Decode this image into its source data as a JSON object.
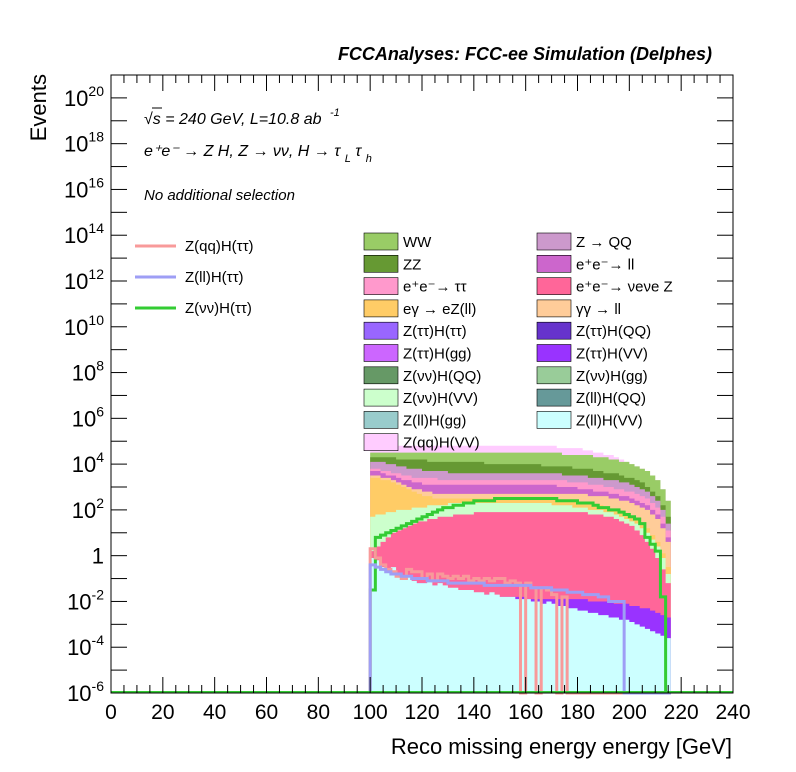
{
  "chart_data": {
    "type": "bar",
    "title": "FCCAnalyses: FCC-ee Simulation (Delphes)",
    "xlabel": "Reco missing energy energy [GeV]",
    "ylabel": "Events",
    "log_y": true,
    "xlim": [
      0,
      240
    ],
    "ylim": [
      1e-06,
      1e+21
    ],
    "xticks": [
      "0",
      "20",
      "40",
      "60",
      "80",
      "100",
      "120",
      "140",
      "160",
      "180",
      "200",
      "220",
      "240"
    ],
    "yticks": [
      {
        "base": "10",
        "exp": "20",
        "value": 1e+20
      },
      {
        "base": "10",
        "exp": "18",
        "value": 1e+18
      },
      {
        "base": "10",
        "exp": "16",
        "value": 1e+16
      },
      {
        "base": "10",
        "exp": "14",
        "value": 100000000000000.0
      },
      {
        "base": "10",
        "exp": "12",
        "value": 1000000000000.0
      },
      {
        "base": "10",
        "exp": "10",
        "value": 10000000000.0
      },
      {
        "base": "10",
        "exp": "8",
        "value": 100000000.0
      },
      {
        "base": "10",
        "exp": "6",
        "value": 1000000.0
      },
      {
        "base": "10",
        "exp": "4",
        "value": 10000.0
      },
      {
        "base": "10",
        "exp": "2",
        "value": 100.0
      },
      {
        "base": "1",
        "exp": "",
        "value": 1
      },
      {
        "base": "10",
        "exp": "-2",
        "value": 0.01
      },
      {
        "base": "10",
        "exp": "-4",
        "value": 0.0001
      },
      {
        "base": "10",
        "exp": "-6",
        "value": 1e-06
      }
    ],
    "annotations": {
      "energy_line": "√s = 240 GeV, L=10.8 ab",
      "energy_sup": "-1",
      "process_line": "e⁺e⁻ → Z H, Z → νν, H → τ",
      "process_sub_l": "L",
      "process_tau": "τ",
      "process_sub_h": "h",
      "selection": "No additional selection"
    },
    "signal_legend": [
      {
        "label": "Z(qq)H(ττ)",
        "color": "#f89a9a"
      },
      {
        "label": "Z(ll)H(ττ)",
        "color": "#9e9ef5"
      },
      {
        "label": "Z(νν)H(ττ)",
        "color": "#33cc33"
      }
    ],
    "background_legend": [
      {
        "label": "WW",
        "color": "#99cc66"
      },
      {
        "label": "Z → QQ",
        "color": "#cc99cc"
      },
      {
        "label": "ZZ",
        "color": "#669933"
      },
      {
        "label": "e⁺e⁻→ ll",
        "color": "#cc66cc"
      },
      {
        "label": "e⁺e⁻→ ττ",
        "color": "#ff99cc"
      },
      {
        "label": "e⁺e⁻→ νeνe Z",
        "color": "#ff6699"
      },
      {
        "label": "eγ → eZ(ll)",
        "color": "#ffcc66"
      },
      {
        "label": "γγ → ll",
        "color": "#ffcc99"
      },
      {
        "label": "Z(ττ)H(ττ)",
        "color": "#9966ff"
      },
      {
        "label": "Z(ττ)H(QQ)",
        "color": "#6633cc"
      },
      {
        "label": "Z(ττ)H(gg)",
        "color": "#cc66ff"
      },
      {
        "label": "Z(ττ)H(VV)",
        "color": "#9933ff"
      },
      {
        "label": "Z(νν)H(QQ)",
        "color": "#669966"
      },
      {
        "label": "Z(νν)H(gg)",
        "color": "#99cc99"
      },
      {
        "label": "Z(νν)H(VV)",
        "color": "#ccffcc"
      },
      {
        "label": "Z(ll)H(QQ)",
        "color": "#669999"
      },
      {
        "label": "Z(ll)H(gg)",
        "color": "#99cccc"
      },
      {
        "label": "Z(ll)H(VV)",
        "color": "#ccffff"
      },
      {
        "label": "Z(qq)H(VV)",
        "color": "#ffccff"
      }
    ],
    "stack_bins": [
      100,
      102,
      104,
      106,
      108,
      110,
      112,
      114,
      116,
      118,
      120,
      122,
      124,
      126,
      128,
      130,
      132,
      134,
      136,
      138,
      140,
      142,
      144,
      146,
      148,
      150,
      152,
      154,
      156,
      158,
      160,
      162,
      164,
      166,
      168,
      170,
      172,
      174,
      176,
      178,
      180,
      182,
      184,
      186,
      188,
      190,
      192,
      194,
      196,
      198,
      200,
      202,
      204,
      206,
      208,
      210,
      212,
      214,
      216
    ],
    "stack_bands": [
      {
        "name": "Z(ll)H(VV)",
        "color": "#ccffff",
        "top_exp": [
          -0.1,
          -0.2,
          -0.5,
          -0.7,
          -0.5,
          -0.8,
          -1,
          -0.9,
          -1.1,
          -1.2,
          -1.2,
          -1.1,
          -1.3,
          -1.2,
          -1.3,
          -1.4,
          -1.4,
          -1.5,
          -1.5,
          -1.5,
          -1.6,
          -1.6,
          -1.7,
          -1.6,
          -1.7,
          -1.8,
          -1.8,
          -1.8,
          -1.9,
          -1.9,
          -1.9,
          -2,
          -2,
          -2.1,
          -2,
          -2.1,
          -2.2,
          -2.2,
          -2.3,
          -2.3,
          -2.4,
          -2.4,
          -2.5,
          -2.5,
          -2.6,
          -2.6,
          -2.7,
          -2.7,
          -2.8,
          -2.8,
          -2.9,
          -3,
          -3.1,
          -3.2,
          -3.3,
          -3.4,
          -3.5,
          -3.6
        ]
      },
      {
        "name": "Z(ττ)H(VV)",
        "color": "#9933ff",
        "top_exp": [
          -0.5,
          -0.6,
          -0.7,
          -0.8,
          -0.9,
          -1.0,
          -1.0,
          -1.1,
          -1.1,
          -1.2,
          -1.2,
          -1.3,
          -1.3,
          -1.4,
          -1.4,
          -1.5,
          -1.5,
          -1.6,
          -1.6,
          -1.6,
          -1.7,
          -1.7,
          -1.7,
          -1.7,
          -1.8,
          -1.8,
          -1.8,
          -1.8,
          -1.8,
          -1.8,
          -1.9,
          -1.9,
          -1.9,
          -1.9,
          -1.9,
          -1.9,
          -1.9,
          -1.9,
          -1.9,
          -1.9,
          -1.9,
          -1.9,
          -2.0,
          -2.0,
          -2.0,
          -2.0,
          -2.0,
          -2.1,
          -2.1,
          -2.1,
          -2.2,
          -2.2,
          -2.3,
          -2.3,
          -2.4,
          -2.5,
          -2.6,
          -2.7
        ]
      },
      {
        "name": "e⁺e⁻→ νeνe Z",
        "color": "#ff6699",
        "top_exp": [
          0.2,
          0.4,
          0.6,
          0.8,
          1.0,
          1.1,
          1.2,
          1.3,
          1.4,
          1.5,
          1.5,
          1.6,
          1.6,
          1.7,
          1.7,
          1.7,
          1.8,
          1.8,
          1.8,
          1.8,
          1.9,
          1.9,
          1.9,
          1.9,
          1.9,
          1.9,
          1.9,
          1.9,
          1.9,
          1.9,
          1.9,
          1.9,
          1.9,
          1.9,
          1.9,
          1.9,
          1.9,
          1.9,
          1.9,
          1.9,
          1.9,
          1.9,
          1.8,
          1.8,
          1.8,
          1.7,
          1.7,
          1.6,
          1.5,
          1.4,
          1.3,
          1.1,
          0.9,
          0.6,
          0.3,
          -0.1,
          -0.6,
          -1.2
        ]
      },
      {
        "name": "Z(νν)H(VV)",
        "color": "#ccffcc",
        "top_exp": [
          1.7,
          1.8,
          1.8,
          1.9,
          1.9,
          2.0,
          2.0,
          2.0,
          2.1,
          2.1,
          2.1,
          2.2,
          2.2,
          2.2,
          2.2,
          2.3,
          2.3,
          2.3,
          2.3,
          2.3,
          2.3,
          2.3,
          2.3,
          2.3,
          2.3,
          2.3,
          2.3,
          2.3,
          2.3,
          2.3,
          2.3,
          2.3,
          2.3,
          2.3,
          2.3,
          2.2,
          2.2,
          2.2,
          2.2,
          2.1,
          2.1,
          2.1,
          2.0,
          2.0,
          2.0,
          1.9,
          1.9,
          1.8,
          1.7,
          1.6,
          1.5,
          1.4,
          1.2,
          1.0,
          0.7,
          0.4,
          -0.1,
          -0.8
        ]
      },
      {
        "name": "eγ → eZ(ll)",
        "color": "#ffcc66",
        "top_exp": [
          3.4,
          3.4,
          3.3,
          3.3,
          3.2,
          3.1,
          3.0,
          2.9,
          2.8,
          2.7,
          2.6,
          2.6,
          2.5,
          2.5,
          2.5,
          2.5,
          2.5,
          2.5,
          2.5,
          2.5,
          2.5,
          2.5,
          2.5,
          2.5,
          2.5,
          2.5,
          2.5,
          2.5,
          2.5,
          2.5,
          2.5,
          2.5,
          2.5,
          2.5,
          2.5,
          2.5,
          2.4,
          2.4,
          2.4,
          2.4,
          2.3,
          2.3,
          2.3,
          2.2,
          2.2,
          2.1,
          2.0,
          2.0,
          1.9,
          1.8,
          1.7,
          1.6,
          1.4,
          1.2,
          0.9,
          0.6,
          0.1,
          -0.5
        ]
      },
      {
        "name": "γγ → ll",
        "color": "#ffcc99",
        "top_exp": [
          3.5,
          3.5,
          3.4,
          3.4,
          3.3,
          3.2,
          3.1,
          3.0,
          2.9,
          2.9,
          2.8,
          2.8,
          2.7,
          2.7,
          2.7,
          2.7,
          2.7,
          2.7,
          2.7,
          2.7,
          2.7,
          2.7,
          2.7,
          2.7,
          2.7,
          2.7,
          2.7,
          2.7,
          2.7,
          2.7,
          2.7,
          2.7,
          2.7,
          2.7,
          2.7,
          2.7,
          2.7,
          2.7,
          2.7,
          2.7,
          2.7,
          2.7,
          2.6,
          2.6,
          2.6,
          2.6,
          2.5,
          2.5,
          2.4,
          2.4,
          2.3,
          2.2,
          2.1,
          2.0,
          1.8,
          1.6,
          1.2,
          0.6
        ]
      },
      {
        "name": "e⁺e⁻→ ll",
        "color": "#cc66cc",
        "top_exp": [
          3.7,
          3.7,
          3.6,
          3.5,
          3.5,
          3.4,
          3.3,
          3.3,
          3.2,
          3.2,
          3.1,
          3.1,
          3.1,
          3.1,
          3.1,
          3.1,
          3.1,
          3.1,
          3.1,
          3.1,
          3.1,
          3.1,
          3.1,
          3.1,
          3.1,
          3.1,
          3.1,
          3.1,
          3.1,
          3.1,
          3.1,
          3.1,
          3.1,
          3.1,
          3.1,
          3.1,
          3.0,
          3.0,
          3.0,
          3.0,
          2.9,
          2.9,
          2.9,
          2.8,
          2.8,
          2.8,
          2.7,
          2.7,
          2.6,
          2.6,
          2.5,
          2.4,
          2.3,
          2.2,
          2.0,
          1.8,
          1.4,
          0.8
        ]
      },
      {
        "name": "e⁺e⁻→ ττ",
        "color": "#ff99cc",
        "top_exp": [
          3.8,
          3.8,
          3.7,
          3.7,
          3.6,
          3.6,
          3.5,
          3.5,
          3.4,
          3.4,
          3.4,
          3.4,
          3.4,
          3.3,
          3.3,
          3.3,
          3.3,
          3.3,
          3.3,
          3.3,
          3.3,
          3.3,
          3.3,
          3.3,
          3.3,
          3.3,
          3.3,
          3.3,
          3.3,
          3.3,
          3.3,
          3.3,
          3.3,
          3.3,
          3.3,
          3.3,
          3.3,
          3.3,
          3.2,
          3.2,
          3.2,
          3.2,
          3.1,
          3.1,
          3.1,
          3.0,
          3.0,
          2.9,
          2.9,
          2.8,
          2.8,
          2.7,
          2.6,
          2.5,
          2.3,
          2.1,
          1.7,
          1.1
        ]
      },
      {
        "name": "Z → QQ",
        "color": "#cc99cc",
        "top_exp": [
          4.1,
          4.1,
          4.1,
          4.0,
          4.0,
          3.9,
          3.9,
          3.8,
          3.8,
          3.8,
          3.7,
          3.7,
          3.7,
          3.7,
          3.7,
          3.6,
          3.6,
          3.6,
          3.6,
          3.6,
          3.6,
          3.6,
          3.6,
          3.6,
          3.6,
          3.6,
          3.6,
          3.6,
          3.6,
          3.6,
          3.6,
          3.6,
          3.6,
          3.6,
          3.6,
          3.6,
          3.6,
          3.5,
          3.5,
          3.5,
          3.5,
          3.5,
          3.4,
          3.4,
          3.4,
          3.3,
          3.3,
          3.3,
          3.2,
          3.2,
          3.1,
          3.0,
          2.9,
          2.8,
          2.6,
          2.4,
          2.0,
          1.4
        ]
      },
      {
        "name": "ZZ",
        "color": "#669933",
        "top_exp": [
          4.3,
          4.3,
          4.3,
          4.3,
          4.3,
          4.2,
          4.2,
          4.2,
          4.2,
          4.2,
          4.2,
          4.1,
          4.1,
          4.1,
          4.1,
          4.1,
          4.1,
          4.1,
          4.1,
          4.1,
          4.1,
          4.1,
          4.0,
          4.0,
          4.0,
          4.0,
          4.0,
          4.0,
          4.0,
          4.0,
          4.0,
          4.0,
          4.0,
          3.9,
          3.9,
          3.9,
          3.9,
          3.9,
          3.9,
          3.8,
          3.8,
          3.8,
          3.8,
          3.7,
          3.7,
          3.6,
          3.6,
          3.6,
          3.5,
          3.4,
          3.4,
          3.3,
          3.2,
          3.0,
          2.8,
          2.6,
          2.2,
          1.7
        ]
      },
      {
        "name": "WW",
        "color": "#99cc66",
        "top_exp": [
          4.5,
          4.5,
          4.5,
          4.5,
          4.5,
          4.5,
          4.5,
          4.5,
          4.5,
          4.5,
          4.5,
          4.5,
          4.5,
          4.5,
          4.5,
          4.5,
          4.5,
          4.5,
          4.5,
          4.5,
          4.5,
          4.5,
          4.5,
          4.5,
          4.5,
          4.5,
          4.5,
          4.5,
          4.5,
          4.5,
          4.5,
          4.5,
          4.5,
          4.5,
          4.5,
          4.5,
          4.5,
          4.4,
          4.4,
          4.4,
          4.4,
          4.4,
          4.4,
          4.3,
          4.3,
          4.3,
          4.2,
          4.2,
          4.1,
          4.1,
          4.0,
          3.9,
          3.8,
          3.7,
          3.5,
          3.3,
          2.9,
          2.4
        ]
      },
      {
        "name": "Z(qq)H(VV)",
        "color": "#ffccff",
        "top_exp": [
          4.8,
          4.8,
          4.8,
          4.8,
          4.8,
          4.8,
          4.8,
          4.8,
          4.8,
          4.8,
          4.8,
          4.8,
          4.8,
          4.8,
          4.8,
          4.8,
          4.8,
          4.8,
          4.8,
          4.8,
          4.8,
          4.8,
          4.8,
          4.8,
          4.8,
          4.8,
          4.8,
          4.8,
          4.8,
          4.8,
          4.8,
          4.8,
          4.8,
          4.8,
          4.8,
          4.8,
          4.7,
          4.7,
          4.7,
          4.7,
          4.7,
          4.6,
          4.6,
          4.5,
          4.5,
          4.4,
          4.4,
          4.3,
          4.2,
          4.1,
          4.0,
          3.9,
          3.8,
          3.7,
          3.5,
          3.3,
          2.9,
          2.4
        ]
      }
    ],
    "signal_lines": [
      {
        "name": "Z(νν)H(ττ)",
        "color": "#33cc33",
        "top_exp": [
          -1.5,
          0.8,
          0.9,
          1.0,
          1.1,
          1.2,
          1.3,
          1.4,
          1.5,
          1.6,
          1.7,
          1.8,
          1.9,
          2.0,
          2.1,
          2.1,
          2.2,
          2.2,
          2.3,
          2.3,
          2.4,
          2.4,
          2.4,
          2.4,
          2.5,
          2.5,
          2.5,
          2.5,
          2.5,
          2.5,
          2.5,
          2.5,
          2.5,
          2.5,
          2.5,
          2.5,
          2.4,
          2.4,
          2.4,
          2.4,
          2.3,
          2.3,
          2.3,
          2.2,
          2.1,
          2.1,
          2.0,
          2.0,
          1.9,
          1.8,
          1.7,
          1.6,
          1.4,
          0.8,
          0.5,
          0.2,
          -1.8,
          -6.0
        ]
      },
      {
        "name": "Z(qq)H(ττ)",
        "color": "#f89a9a",
        "top_exp": [
          0.3,
          -0.1,
          -0.4,
          -0.6,
          -0.7,
          -0.9,
          -1.0,
          -0.6,
          -0.7,
          -0.7,
          -1.0,
          -0.8,
          -1.1,
          -0.8,
          -0.9,
          -1.0,
          -0.9,
          -1.0,
          -0.9,
          -1.1,
          -1.0,
          -1.1,
          -1.0,
          -1.1,
          -1.0,
          -1.0,
          -1.2,
          -1.1,
          -1.2,
          -6.0,
          -1.2,
          -1.4,
          -6.0,
          -1.4,
          -1.5,
          -1.7,
          -6.0,
          -1.8,
          -6.0,
          -6.0,
          -6.0,
          -6.0,
          -6.0,
          -6.0,
          -6.0,
          -6.0,
          -6.0,
          -6.0,
          -6.0,
          -6.0,
          -6.0,
          -6.0,
          -6.0,
          -6.0,
          -6.0,
          -6.0,
          -6.0,
          -6.0
        ]
      },
      {
        "name": "Z(ll)H(ττ)",
        "color": "#9e9ef5",
        "top_exp": [
          -0.4,
          -0.5,
          -0.6,
          -0.7,
          -0.8,
          -0.8,
          -0.9,
          -0.9,
          -1.0,
          -1.0,
          -1.0,
          -1.1,
          -1.1,
          -1.1,
          -1.1,
          -1.2,
          -1.2,
          -1.2,
          -1.2,
          -1.2,
          -1.2,
          -1.2,
          -1.3,
          -1.3,
          -1.3,
          -1.3,
          -1.3,
          -1.3,
          -1.3,
          -1.3,
          -1.3,
          -1.4,
          -1.4,
          -1.4,
          -1.4,
          -1.5,
          -1.5,
          -1.5,
          -1.6,
          -1.6,
          -1.6,
          -1.7,
          -1.7,
          -1.7,
          -1.8,
          -1.8,
          -2.0,
          -2.0,
          -2.0,
          -6.0,
          -6.0,
          -6.0,
          -6.0,
          -6.0,
          -6.0,
          -6.0,
          -6.0,
          -6.0
        ]
      }
    ]
  }
}
